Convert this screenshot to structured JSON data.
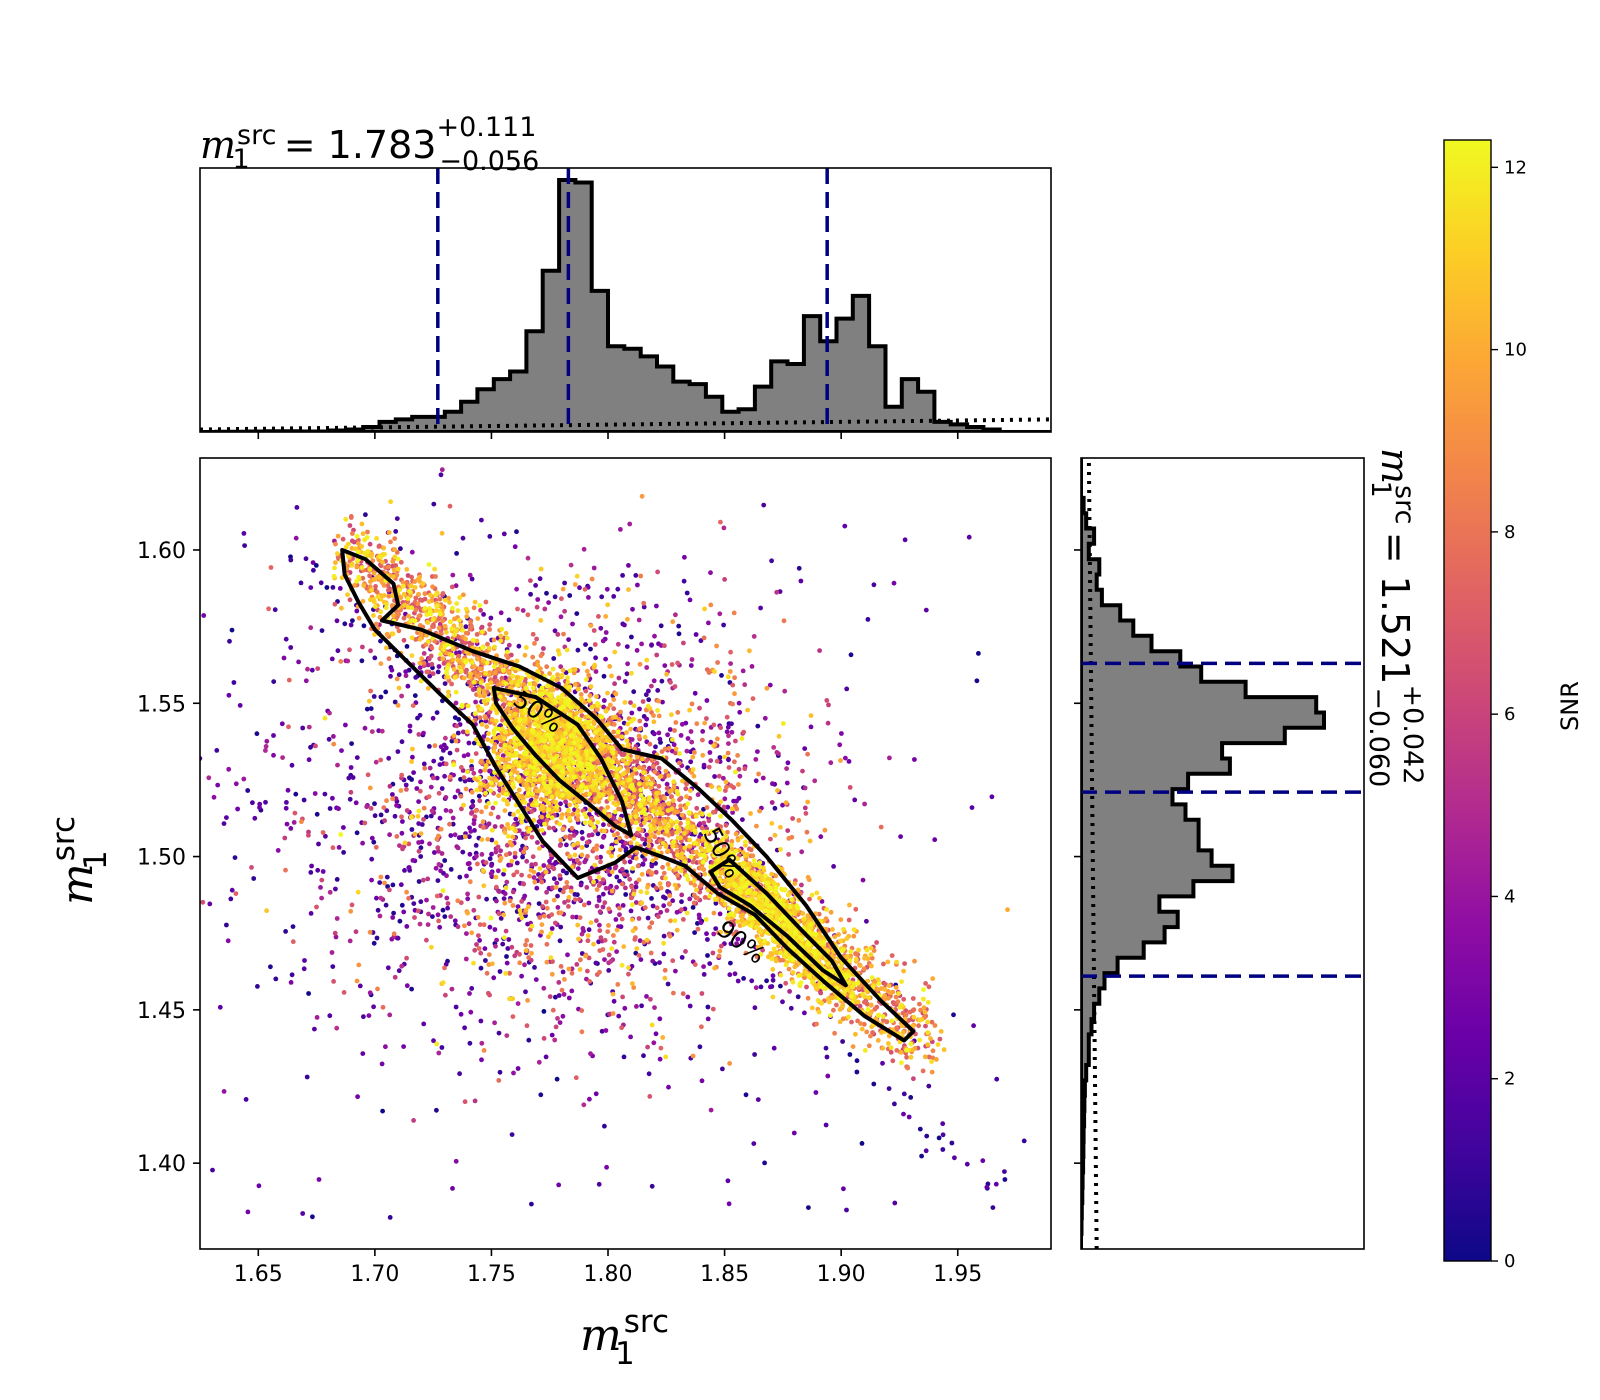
{
  "chart_data": {
    "type": "scatter",
    "colorscale": "plasma",
    "colorbar": {
      "label": "SNR",
      "range": [
        0,
        12.3
      ],
      "ticks": [
        0,
        2,
        4,
        6,
        8,
        10,
        12
      ],
      "tick_labels": [
        "0",
        "2",
        "4",
        "6",
        "8",
        "10",
        "12"
      ]
    },
    "axes": {
      "x": {
        "label_symbol": "m",
        "label_sup": "src",
        "label_sub": "1",
        "range": [
          1.625,
          1.99
        ],
        "ticks": [
          1.65,
          1.7,
          1.75,
          1.8,
          1.85,
          1.9,
          1.95
        ],
        "tick_labels": [
          "1.65",
          "1.70",
          "1.75",
          "1.80",
          "1.85",
          "1.90",
          "1.95"
        ]
      },
      "y": {
        "label_symbol": "m",
        "label_sup": "src",
        "label_sub": "1",
        "range": [
          1.372,
          1.63
        ],
        "ticks": [
          1.4,
          1.45,
          1.5,
          1.55,
          1.6
        ],
        "tick_labels": [
          "1.40",
          "1.45",
          "1.50",
          "1.55",
          "1.60"
        ]
      }
    },
    "top_title": {
      "symbol": "m",
      "sup": "src",
      "sub": "1",
      "eq": " = 1.783",
      "plus": "+0.111",
      "minus": "−0.056"
    },
    "right_title": {
      "symbol": "m",
      "sup": "src",
      "sub": "1",
      "eq": " = 1.521",
      "plus": "+0.042",
      "minus": "−0.060"
    },
    "x_quantiles": [
      1.727,
      1.783,
      1.894
    ],
    "y_quantiles": [
      1.461,
      1.521,
      1.563
    ],
    "x_hist": {
      "bin_start": 1.625,
      "bin_width": 0.007,
      "heights": [
        0,
        0.1,
        0.1,
        0.2,
        0.3,
        0.3,
        0.2,
        0.2,
        0.6,
        1,
        2,
        4,
        5,
        6,
        6,
        8,
        12,
        17,
        21,
        24,
        40,
        64,
        100,
        99,
        56,
        34,
        33,
        30,
        26,
        20,
        19,
        14,
        8,
        9,
        18,
        28,
        27,
        46,
        36,
        45,
        54,
        34,
        10,
        21,
        16,
        4,
        3,
        2,
        1,
        0,
        0,
        0,
        0
      ]
    },
    "y_hist": {
      "bin_start": 1.372,
      "bin_width": 0.005,
      "heights": [
        0,
        0.2,
        0.3,
        0.5,
        0.6,
        0.8,
        0.9,
        1,
        1.2,
        1.3,
        1.5,
        2,
        3,
        3,
        4,
        5,
        7,
        9,
        14,
        24,
        32,
        37,
        30,
        43,
        58,
        50,
        45,
        45,
        40,
        35,
        41,
        57,
        54,
        78,
        93,
        90,
        63,
        46,
        38,
        27,
        20,
        15,
        8,
        6,
        7,
        3,
        5,
        2,
        1,
        0,
        0,
        0
      ]
    },
    "x_hist_dotted": [
      1,
      5
    ],
    "y_hist_dotted": [
      6,
      3
    ],
    "contours": [
      {
        "label": "50%",
        "points": [
          [
            1.751,
            1.555
          ],
          [
            1.769,
            1.552
          ],
          [
            1.787,
            1.543
          ],
          [
            1.797,
            1.532
          ],
          [
            1.806,
            1.518
          ],
          [
            1.81,
            1.507
          ],
          [
            1.803,
            1.51
          ],
          [
            1.792,
            1.517
          ],
          [
            1.779,
            1.525
          ],
          [
            1.769,
            1.533
          ],
          [
            1.759,
            1.542
          ],
          [
            1.752,
            1.55
          ]
        ]
      },
      {
        "label": "50%",
        "points": [
          [
            1.852,
            1.499
          ],
          [
            1.868,
            1.488
          ],
          [
            1.883,
            1.476
          ],
          [
            1.896,
            1.466
          ],
          [
            1.902,
            1.458
          ],
          [
            1.892,
            1.463
          ],
          [
            1.877,
            1.474
          ],
          [
            1.861,
            1.484
          ],
          [
            1.848,
            1.49
          ],
          [
            1.844,
            1.495
          ]
        ]
      },
      {
        "label": "90%",
        "points": [
          [
            1.686,
            1.6
          ],
          [
            1.696,
            1.597
          ],
          [
            1.708,
            1.589
          ],
          [
            1.71,
            1.582
          ],
          [
            1.703,
            1.577
          ],
          [
            1.72,
            1.574
          ],
          [
            1.742,
            1.567
          ],
          [
            1.762,
            1.562
          ],
          [
            1.78,
            1.555
          ],
          [
            1.795,
            1.545
          ],
          [
            1.806,
            1.535
          ],
          [
            1.823,
            1.532
          ],
          [
            1.839,
            1.522
          ],
          [
            1.853,
            1.512
          ],
          [
            1.868,
            1.5
          ],
          [
            1.885,
            1.484
          ],
          [
            1.9,
            1.467
          ],
          [
            1.917,
            1.453
          ],
          [
            1.931,
            1.443
          ],
          [
            1.927,
            1.44
          ],
          [
            1.91,
            1.448
          ],
          [
            1.893,
            1.459
          ],
          [
            1.877,
            1.47
          ],
          [
            1.863,
            1.481
          ],
          [
            1.847,
            1.488
          ],
          [
            1.833,
            1.497
          ],
          [
            1.823,
            1.5
          ],
          [
            1.812,
            1.503
          ],
          [
            1.803,
            1.498
          ],
          [
            1.787,
            1.493
          ],
          [
            1.772,
            1.505
          ],
          [
            1.762,
            1.517
          ],
          [
            1.752,
            1.529
          ],
          [
            1.742,
            1.543
          ],
          [
            1.728,
            1.553
          ],
          [
            1.712,
            1.565
          ],
          [
            1.7,
            1.574
          ],
          [
            1.693,
            1.583
          ],
          [
            1.687,
            1.592
          ]
        ]
      }
    ],
    "contour_labels": [
      {
        "text": "50%",
        "x": 1.768,
        "y": 1.545,
        "angle": 35
      },
      {
        "text": "50%",
        "x": 1.846,
        "y": 1.5,
        "angle": 62
      },
      {
        "text": "90%",
        "x": 1.855,
        "y": 1.47,
        "angle": 38
      }
    ]
  }
}
